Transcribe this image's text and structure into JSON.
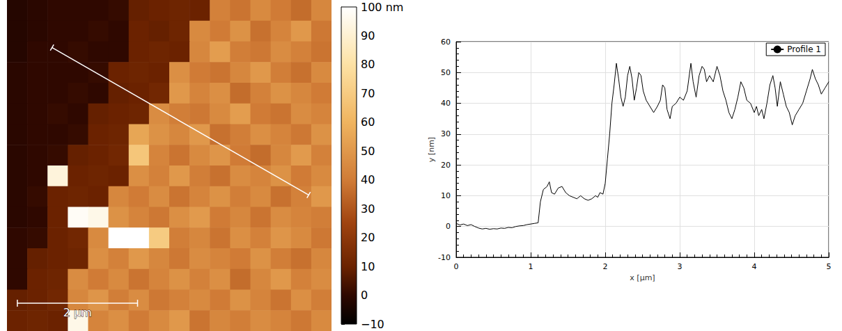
{
  "chart_data": [
    {
      "type": "heatmap",
      "xlim": [
        0,
        5.4
      ],
      "ylim": [
        0,
        5.5
      ],
      "tick_labels": false,
      "cells": [
        [
          -2,
          -1,
          0,
          0,
          0,
          1,
          9,
          10,
          11,
          10,
          42,
          38,
          45,
          40,
          36,
          44
        ],
        [
          -2,
          -1,
          0,
          0,
          1,
          0,
          10,
          9,
          11,
          45,
          40,
          48,
          37,
          43,
          50,
          39
        ],
        [
          -2,
          0,
          0,
          1,
          0,
          0,
          10,
          11,
          10,
          44,
          52,
          41,
          39,
          46,
          42,
          38
        ],
        [
          -1,
          0,
          0,
          0,
          1,
          10,
          11,
          10,
          47,
          40,
          38,
          44,
          50,
          41,
          37,
          45
        ],
        [
          -1,
          0,
          0,
          1,
          0,
          9,
          10,
          12,
          50,
          43,
          47,
          36,
          42,
          48,
          44,
          40
        ],
        [
          -1,
          0,
          1,
          0,
          9,
          10,
          11,
          46,
          41,
          39,
          45,
          52,
          40,
          38,
          46,
          43
        ],
        [
          -1,
          0,
          0,
          1,
          10,
          11,
          55,
          48,
          44,
          50,
          37,
          41,
          47,
          43,
          39,
          48
        ],
        [
          -1,
          0,
          1,
          9,
          10,
          12,
          68,
          43,
          38,
          45,
          49,
          40,
          36,
          44,
          51,
          42
        ],
        [
          -1,
          0,
          92,
          10,
          11,
          10,
          47,
          42,
          50,
          41,
          37,
          46,
          43,
          48,
          40,
          45
        ],
        [
          -1,
          1,
          10,
          11,
          10,
          44,
          40,
          46,
          38,
          43,
          48,
          41,
          45,
          37,
          42,
          50
        ],
        [
          -1,
          0,
          10,
          98,
          95,
          48,
          43,
          39,
          47,
          51,
          40,
          44,
          38,
          46,
          43,
          41
        ],
        [
          0,
          1,
          10,
          12,
          45,
          100,
          100,
          70,
          41,
          44,
          38,
          47,
          42,
          49,
          45,
          39
        ],
        [
          0,
          9,
          10,
          11,
          47,
          42,
          50,
          44,
          39,
          46,
          43,
          40,
          48,
          41,
          37,
          44
        ],
        [
          0,
          10,
          11,
          46,
          40,
          45,
          38,
          43,
          48,
          42,
          47,
          36,
          44,
          50,
          42,
          46
        ],
        [
          9,
          10,
          12,
          44,
          49,
          41,
          46,
          39,
          42,
          45,
          40,
          48,
          43,
          38,
          47,
          41
        ],
        [
          10,
          11,
          10,
          95,
          43,
          47,
          40,
          45,
          50,
          38,
          44,
          41,
          46,
          43,
          39,
          45
        ]
      ],
      "color_range": [
        -10,
        100
      ],
      "color_ticks": [
        {
          "value": -10,
          "label": "−10"
        },
        0,
        10,
        20,
        30,
        40,
        50,
        60,
        70,
        80,
        90,
        {
          "value": 100,
          "label": "100 nm"
        }
      ],
      "scale_bar": {
        "length": 2,
        "label": "2 µm"
      },
      "profile_path": {
        "start": [
          0.75,
          0.79
        ],
        "end": [
          5.02,
          3.24
        ]
      }
    },
    {
      "type": "line",
      "x": [
        0,
        0.05,
        0.1,
        0.15,
        0.2,
        0.25,
        0.3,
        0.35,
        0.4,
        0.45,
        0.5,
        0.55,
        0.6,
        0.65,
        0.7,
        0.75,
        0.8,
        0.85,
        0.9,
        0.95,
        1.0,
        1.05,
        1.1,
        1.13,
        1.17,
        1.22,
        1.25,
        1.28,
        1.32,
        1.37,
        1.42,
        1.47,
        1.52,
        1.57,
        1.62,
        1.67,
        1.72,
        1.77,
        1.82,
        1.87,
        1.9,
        1.93,
        1.97,
        2.0,
        2.03,
        2.06,
        2.09,
        2.12,
        2.15,
        2.18,
        2.21,
        2.24,
        2.27,
        2.3,
        2.33,
        2.36,
        2.39,
        2.42,
        2.45,
        2.48,
        2.51,
        2.55,
        2.6,
        2.65,
        2.7,
        2.74,
        2.77,
        2.8,
        2.83,
        2.87,
        2.9,
        2.95,
        3.0,
        3.05,
        3.1,
        3.15,
        3.18,
        3.22,
        3.26,
        3.3,
        3.33,
        3.36,
        3.4,
        3.45,
        3.5,
        3.54,
        3.58,
        3.62,
        3.66,
        3.7,
        3.74,
        3.78,
        3.82,
        3.86,
        3.9,
        3.95,
        4.0,
        4.03,
        4.06,
        4.1,
        4.13,
        4.17,
        4.21,
        4.25,
        4.28,
        4.31,
        4.35,
        4.39,
        4.43,
        4.47,
        4.51,
        4.55,
        4.6,
        4.65,
        4.7,
        4.75,
        4.78,
        4.82,
        4.86,
        4.9,
        4.95,
        5.0
      ],
      "series": [
        {
          "name": "Profile 1",
          "color": "#000000",
          "values": [
            1,
            0.5,
            0.8,
            0.3,
            0.6,
            0,
            -0.5,
            -0.8,
            -0.6,
            -0.9,
            -0.7,
            -0.8,
            -0.5,
            -0.6,
            -0.3,
            -0.4,
            0,
            0.2,
            0.3,
            0.6,
            0.8,
            1,
            1.2,
            8,
            12,
            13,
            14.5,
            11,
            10.5,
            12.5,
            13,
            11,
            10,
            9.5,
            9,
            10,
            9,
            8.5,
            9,
            10,
            9.5,
            11,
            10.5,
            14,
            22,
            30,
            40,
            46,
            53,
            48,
            42,
            39,
            42,
            49,
            52,
            48,
            41,
            45,
            50,
            49,
            44,
            41,
            39,
            37,
            39,
            41,
            46,
            45,
            38,
            35,
            39,
            40,
            42,
            41,
            44,
            53,
            47,
            42,
            49,
            52,
            51,
            47,
            49,
            47,
            52,
            49,
            44,
            41,
            37,
            35,
            38,
            42,
            47,
            45,
            41,
            40,
            37,
            39,
            36,
            38,
            35,
            40,
            46,
            49,
            45,
            39,
            47,
            43,
            39,
            37,
            33,
            36,
            38,
            40,
            44,
            48,
            51,
            48,
            46,
            43,
            45,
            47
          ]
        }
      ],
      "xlim": [
        0,
        5
      ],
      "xticks": [
        0,
        1,
        2,
        3,
        4,
        5
      ],
      "ylim": [
        -10,
        60
      ],
      "yticks": [
        -10,
        0,
        10,
        20,
        30,
        40,
        50,
        60
      ],
      "xlabel": "x [µm]",
      "ylabel": "y [nm]",
      "grid": true,
      "legend": "top-right"
    }
  ]
}
